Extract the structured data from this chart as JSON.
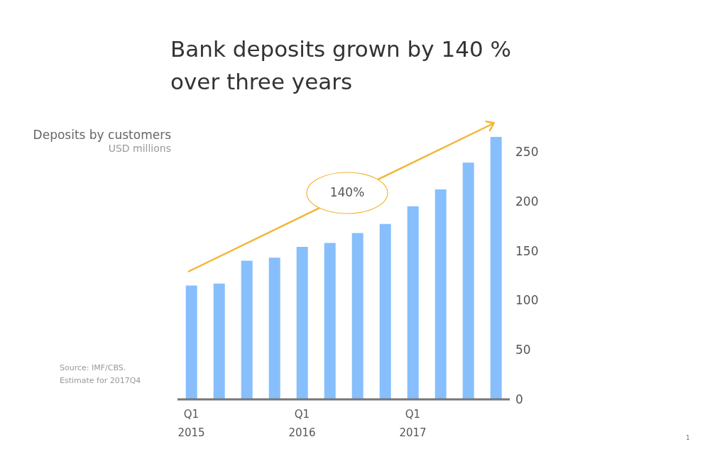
{
  "chart_data": {
    "type": "bar",
    "title": "Bank deposits grown by 140 %\nover three years",
    "ylabel": "Deposits by customers",
    "subtitle": "USD millions",
    "categories": [
      "Q1\n2015",
      null,
      null,
      null,
      "Q1\n2016",
      null,
      null,
      null,
      "Q1\n2017",
      null,
      null,
      null
    ],
    "values": [
      115,
      117,
      140,
      143,
      154,
      158,
      168,
      177,
      195,
      212,
      239,
      265
    ],
    "color": "#86bffb",
    "ylim": [
      0,
      265
    ],
    "yticks": [
      0,
      50,
      100,
      150,
      200,
      250
    ],
    "grid": false,
    "annotations": [
      "140%",
      "Source: IMF/CBS.\nEstimate for 2017Q4",
      "1"
    ]
  }
}
